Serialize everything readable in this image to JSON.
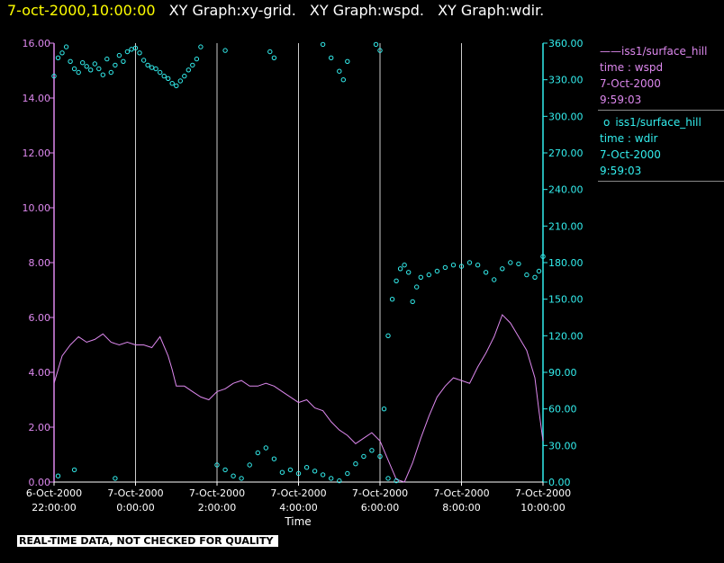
{
  "header": {
    "timestamp": "7-oct-2000,10:00:00",
    "graphs": [
      "XY Graph:xy-grid.",
      "XY Graph:wspd.",
      "XY Graph:wdir."
    ]
  },
  "legend": [
    {
      "marker": "——",
      "name": "iss1/surface_hill",
      "line2": "time : wspd",
      "date": "7-Oct-2000",
      "time": "9:59:03",
      "color": "#dd88ee"
    },
    {
      "marker": "o",
      "name": "iss1/surface_hill",
      "line2": "time : wdir",
      "date": "7-Oct-2000",
      "time": "9:59:03",
      "color": "#33eeee"
    }
  ],
  "banner": "REAL-TIME DATA, NOT CHECKED FOR QUALITY",
  "chart_data": {
    "type": "line",
    "xlabel": "Time",
    "x_ticks": [
      {
        "date": "6-Oct-2000",
        "time": "22:00:00",
        "hours": -2
      },
      {
        "date": "7-Oct-2000",
        "time": "0:00:00",
        "hours": 0
      },
      {
        "date": "7-Oct-2000",
        "time": "2:00:00",
        "hours": 2
      },
      {
        "date": "7-Oct-2000",
        "time": "4:00:00",
        "hours": 4
      },
      {
        "date": "7-Oct-2000",
        "time": "6:00:00",
        "hours": 6
      },
      {
        "date": "7-Oct-2000",
        "time": "8:00:00",
        "hours": 8
      },
      {
        "date": "7-Oct-2000",
        "time": "10:00:00",
        "hours": 10
      }
    ],
    "xlim": [
      -2.0,
      10.0
    ],
    "y_left": {
      "ticks": [
        "0.00",
        "2.00",
        "4.00",
        "6.00",
        "8.00",
        "10.00",
        "12.00",
        "14.00",
        "16.00"
      ],
      "ylim": [
        0,
        16
      ],
      "color": "#dd88ee"
    },
    "y_right": {
      "ticks": [
        "0.00",
        "30.00",
        "60.00",
        "90.00",
        "120.00",
        "150.00",
        "180.00",
        "210.00",
        "240.00",
        "270.00",
        "300.00",
        "330.00",
        "360.00"
      ],
      "ylim": [
        0,
        360
      ],
      "color": "#33eeee"
    },
    "grid": "vertical",
    "series": [
      {
        "name": "iss1/surface_hill time : wspd",
        "style": "line",
        "axis": "left",
        "color": "#dd88ee",
        "points": [
          [
            -2.0,
            3.6
          ],
          [
            -1.8,
            4.6
          ],
          [
            -1.6,
            5.0
          ],
          [
            -1.4,
            5.3
          ],
          [
            -1.2,
            5.1
          ],
          [
            -1.0,
            5.2
          ],
          [
            -0.8,
            5.4
          ],
          [
            -0.6,
            5.1
          ],
          [
            -0.4,
            5.0
          ],
          [
            -0.2,
            5.1
          ],
          [
            0.0,
            5.0
          ],
          [
            0.2,
            5.0
          ],
          [
            0.4,
            4.9
          ],
          [
            0.6,
            5.3
          ],
          [
            0.8,
            4.6
          ],
          [
            0.9,
            4.1
          ],
          [
            1.0,
            3.5
          ],
          [
            1.2,
            3.5
          ],
          [
            1.4,
            3.3
          ],
          [
            1.6,
            3.1
          ],
          [
            1.8,
            3.0
          ],
          [
            2.0,
            3.3
          ],
          [
            2.2,
            3.4
          ],
          [
            2.4,
            3.6
          ],
          [
            2.6,
            3.7
          ],
          [
            2.8,
            3.5
          ],
          [
            3.0,
            3.5
          ],
          [
            3.2,
            3.6
          ],
          [
            3.4,
            3.5
          ],
          [
            3.6,
            3.3
          ],
          [
            3.8,
            3.1
          ],
          [
            4.0,
            2.9
          ],
          [
            4.2,
            3.0
          ],
          [
            4.4,
            2.7
          ],
          [
            4.6,
            2.6
          ],
          [
            4.8,
            2.2
          ],
          [
            5.0,
            1.9
          ],
          [
            5.2,
            1.7
          ],
          [
            5.4,
            1.4
          ],
          [
            5.6,
            1.6
          ],
          [
            5.8,
            1.8
          ],
          [
            6.0,
            1.5
          ],
          [
            6.2,
            0.8
          ],
          [
            6.4,
            0.1
          ],
          [
            6.6,
            0.0
          ],
          [
            6.8,
            0.7
          ],
          [
            7.0,
            1.6
          ],
          [
            7.2,
            2.4
          ],
          [
            7.4,
            3.1
          ],
          [
            7.6,
            3.5
          ],
          [
            7.8,
            3.8
          ],
          [
            8.0,
            3.7
          ],
          [
            8.2,
            3.6
          ],
          [
            8.4,
            4.2
          ],
          [
            8.6,
            4.7
          ],
          [
            8.8,
            5.3
          ],
          [
            9.0,
            6.1
          ],
          [
            9.2,
            5.8
          ],
          [
            9.4,
            5.3
          ],
          [
            9.6,
            4.8
          ],
          [
            9.8,
            3.8
          ],
          [
            9.9,
            2.6
          ],
          [
            10.0,
            1.5
          ]
        ]
      },
      {
        "name": "iss1/surface_hill time : wdir",
        "style": "scatter",
        "axis": "right",
        "color": "#33eeee",
        "points": [
          [
            -2.0,
            333
          ],
          [
            -1.9,
            348
          ],
          [
            -1.8,
            352
          ],
          [
            -1.7,
            357
          ],
          [
            -1.6,
            345
          ],
          [
            -1.5,
            339
          ],
          [
            -1.4,
            336
          ],
          [
            -1.3,
            344
          ],
          [
            -1.2,
            341
          ],
          [
            -1.1,
            338
          ],
          [
            -1.0,
            343
          ],
          [
            -0.9,
            339
          ],
          [
            -0.8,
            334
          ],
          [
            -0.7,
            347
          ],
          [
            -0.6,
            336
          ],
          [
            -0.5,
            342
          ],
          [
            -0.4,
            350
          ],
          [
            -0.3,
            345
          ],
          [
            -0.2,
            353
          ],
          [
            -0.1,
            355
          ],
          [
            0.0,
            356
          ],
          [
            0.1,
            352
          ],
          [
            0.2,
            346
          ],
          [
            0.3,
            342
          ],
          [
            0.4,
            340
          ],
          [
            0.5,
            339
          ],
          [
            0.6,
            336
          ],
          [
            0.7,
            333
          ],
          [
            0.8,
            331
          ],
          [
            0.9,
            327
          ],
          [
            1.0,
            325
          ],
          [
            1.1,
            329
          ],
          [
            1.2,
            333
          ],
          [
            1.3,
            338
          ],
          [
            1.4,
            342
          ],
          [
            1.5,
            347
          ],
          [
            -1.9,
            5
          ],
          [
            -1.5,
            10
          ],
          [
            -0.5,
            3
          ],
          [
            1.6,
            357
          ],
          [
            2.2,
            354
          ],
          [
            3.3,
            353
          ],
          [
            3.4,
            348
          ],
          [
            4.6,
            359
          ],
          [
            4.8,
            348
          ],
          [
            5.0,
            337
          ],
          [
            5.1,
            330
          ],
          [
            5.2,
            345
          ],
          [
            5.9,
            359
          ],
          [
            6.0,
            354
          ],
          [
            2.0,
            14
          ],
          [
            2.2,
            10
          ],
          [
            2.4,
            5
          ],
          [
            2.6,
            3
          ],
          [
            2.8,
            14
          ],
          [
            3.0,
            24
          ],
          [
            3.2,
            28
          ],
          [
            3.4,
            19
          ],
          [
            3.6,
            8
          ],
          [
            3.8,
            10
          ],
          [
            4.0,
            7
          ],
          [
            4.2,
            12
          ],
          [
            4.4,
            9
          ],
          [
            4.6,
            6
          ],
          [
            4.8,
            3
          ],
          [
            5.0,
            1
          ],
          [
            5.2,
            7
          ],
          [
            5.4,
            15
          ],
          [
            5.6,
            21
          ],
          [
            5.8,
            26
          ],
          [
            6.0,
            21
          ],
          [
            6.2,
            3
          ],
          [
            6.4,
            1
          ],
          [
            6.1,
            60
          ],
          [
            6.2,
            120
          ],
          [
            6.3,
            150
          ],
          [
            6.4,
            165
          ],
          [
            6.5,
            175
          ],
          [
            6.6,
            178
          ],
          [
            6.7,
            172
          ],
          [
            6.8,
            148
          ],
          [
            6.9,
            160
          ],
          [
            7.0,
            168
          ],
          [
            7.2,
            170
          ],
          [
            7.4,
            173
          ],
          [
            7.6,
            176
          ],
          [
            7.8,
            178
          ],
          [
            8.0,
            177
          ],
          [
            8.2,
            180
          ],
          [
            8.4,
            178
          ],
          [
            8.6,
            172
          ],
          [
            8.8,
            166
          ],
          [
            9.0,
            175
          ],
          [
            9.2,
            180
          ],
          [
            9.4,
            179
          ],
          [
            9.6,
            170
          ],
          [
            9.8,
            168
          ],
          [
            9.9,
            173
          ],
          [
            10.0,
            185
          ]
        ]
      }
    ]
  }
}
